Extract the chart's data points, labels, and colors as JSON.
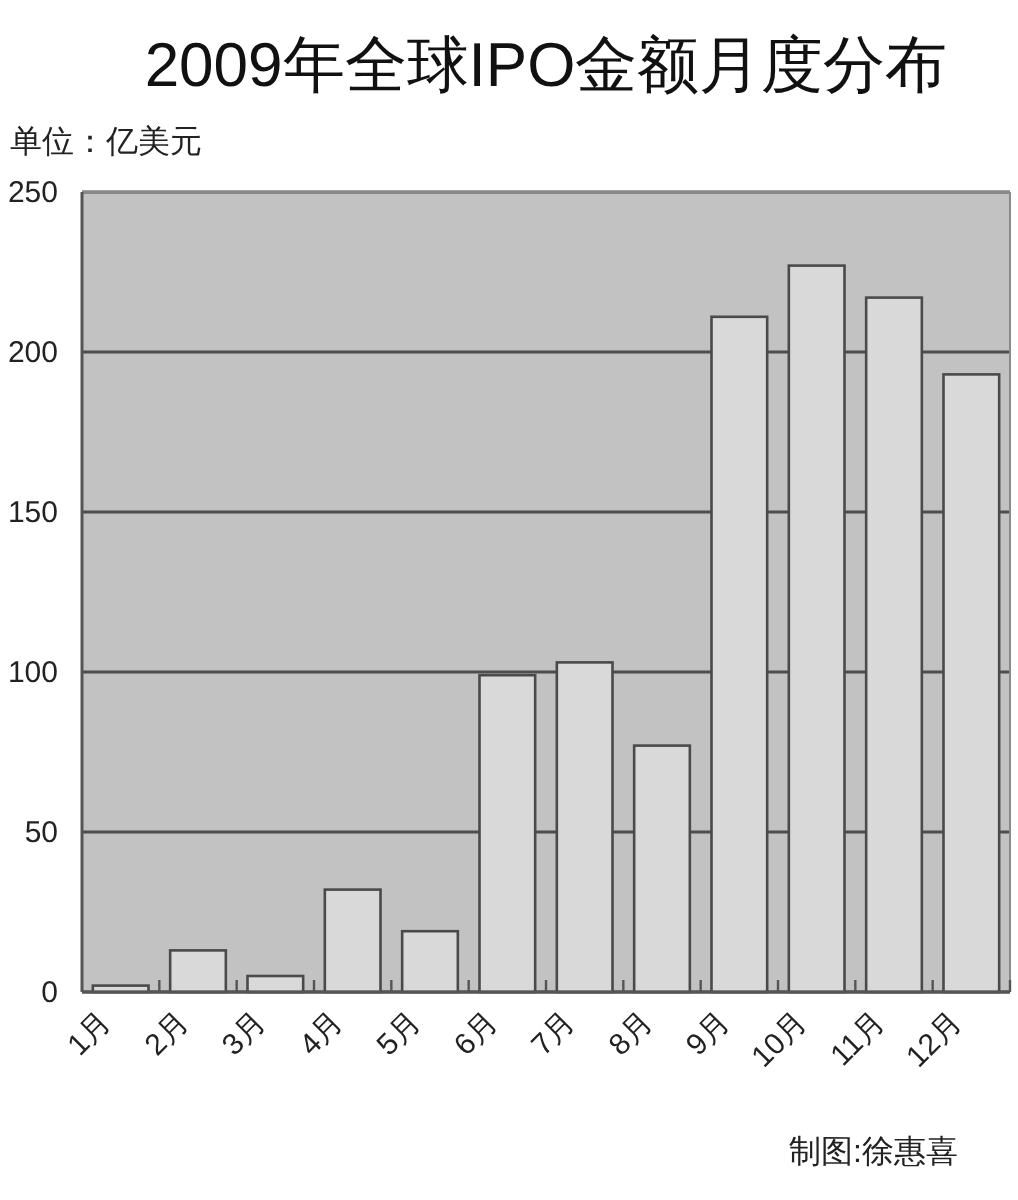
{
  "chart_data": {
    "type": "bar",
    "title": "2009年全球IPO金额月度分布",
    "ylabel": "单位：亿美元",
    "categories": [
      "1月",
      "2月",
      "3月",
      "4月",
      "5月",
      "6月",
      "7月",
      "8月",
      "9月",
      "10月",
      "11月",
      "12月"
    ],
    "values": [
      2,
      13,
      5,
      32,
      19,
      99,
      103,
      77,
      211,
      227,
      217,
      193
    ],
    "color": "#d9d9d9",
    "ylim": [
      0,
      250
    ],
    "yticks": [
      0,
      50,
      100,
      150,
      200,
      250
    ],
    "grid": "y",
    "annotations": [
      "制图:徐惠喜"
    ]
  }
}
